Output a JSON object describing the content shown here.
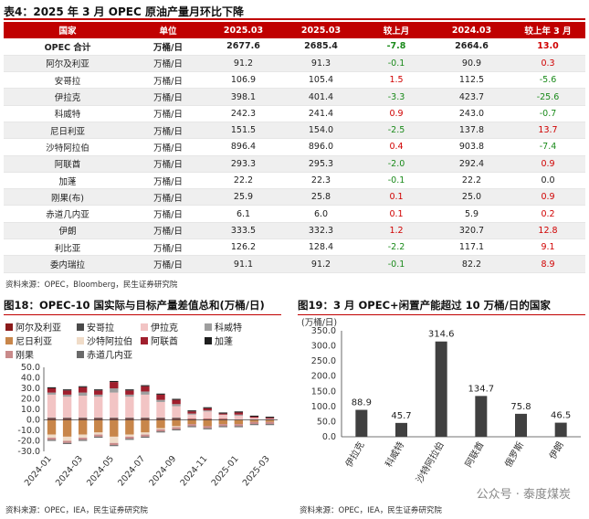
{
  "table": {
    "title": "表4：2025 年 3 月 OPEC 原油产量月环比下降",
    "headers": [
      "国家",
      "单位",
      "2025.03",
      "2025.03",
      "较上月",
      "2024.03",
      "较上年 3 月"
    ],
    "rows": [
      {
        "c": [
          "OPEC 合计",
          "万桶/日",
          "2677.6",
          "2685.4",
          "-7.8",
          "2664.6",
          "13.0"
        ],
        "d1": "neg",
        "d2": "pos",
        "bold": true
      },
      {
        "c": [
          "阿尔及利亚",
          "万桶/日",
          "91.2",
          "91.3",
          "-0.1",
          "90.9",
          "0.3"
        ],
        "d1": "neg",
        "d2": "pos"
      },
      {
        "c": [
          "安哥拉",
          "万桶/日",
          "106.9",
          "105.4",
          "1.5",
          "112.5",
          "-5.6"
        ],
        "d1": "pos",
        "d2": "neg"
      },
      {
        "c": [
          "伊拉克",
          "万桶/日",
          "398.1",
          "401.4",
          "-3.3",
          "423.7",
          "-25.6"
        ],
        "d1": "neg",
        "d2": "neg"
      },
      {
        "c": [
          "科威特",
          "万桶/日",
          "242.3",
          "241.4",
          "0.9",
          "243.0",
          "-0.7"
        ],
        "d1": "pos",
        "d2": "neg"
      },
      {
        "c": [
          "尼日利亚",
          "万桶/日",
          "151.5",
          "154.0",
          "-2.5",
          "137.8",
          "13.7"
        ],
        "d1": "neg",
        "d2": "pos"
      },
      {
        "c": [
          "沙特阿拉伯",
          "万桶/日",
          "896.4",
          "896.0",
          "0.4",
          "903.8",
          "-7.4"
        ],
        "d1": "pos",
        "d2": "neg"
      },
      {
        "c": [
          "阿联酋",
          "万桶/日",
          "293.3",
          "295.3",
          "-2.0",
          "292.4",
          "0.9"
        ],
        "d1": "neg",
        "d2": "pos"
      },
      {
        "c": [
          "加蓬",
          "万桶/日",
          "22.2",
          "22.3",
          "-0.1",
          "22.2",
          "0.0"
        ],
        "d1": "neg",
        "d2": "neu"
      },
      {
        "c": [
          "刚果(布)",
          "万桶/日",
          "25.9",
          "25.8",
          "0.1",
          "25.0",
          "0.9"
        ],
        "d1": "pos",
        "d2": "pos"
      },
      {
        "c": [
          "赤道几内亚",
          "万桶/日",
          "6.1",
          "6.0",
          "0.1",
          "5.9",
          "0.2"
        ],
        "d1": "pos",
        "d2": "pos"
      },
      {
        "c": [
          "伊朗",
          "万桶/日",
          "333.5",
          "332.3",
          "1.2",
          "320.7",
          "12.8"
        ],
        "d1": "pos",
        "d2": "pos"
      },
      {
        "c": [
          "利比亚",
          "万桶/日",
          "126.2",
          "128.4",
          "-2.2",
          "117.1",
          "9.1"
        ],
        "d1": "neg",
        "d2": "pos"
      },
      {
        "c": [
          "委内瑞拉",
          "万桶/日",
          "91.1",
          "91.2",
          "-0.1",
          "82.2",
          "8.9"
        ],
        "d1": "neg",
        "d2": "pos"
      }
    ]
  },
  "table_source": "资料来源：OPEC，Bloomberg，民生证券研究院",
  "fig18": {
    "title": "图18：OPEC-10 国实际与目标产量差值总和(万桶/日)",
    "source": "资料来源：OPEC，IEA，民生证券研究院"
  },
  "fig19": {
    "title": "图19：3 月 OPEC+闲置产能超过 10 万桶/日的国家",
    "source": "资料来源：OPEC，IEA，民生证券研究院"
  },
  "watermark": "公众号 · 泰度煤炭",
  "colors": {
    "accent": "#c00000",
    "neg": "#1a8a1a",
    "pos": "#d00000"
  },
  "chart_data": [
    {
      "type": "bar",
      "stacked": true,
      "ylim": [
        -30,
        50
      ],
      "yticks": [
        "50.0",
        "40.0",
        "30.0",
        "20.0",
        "10.0",
        "0.0",
        "-10.0",
        "-20.0",
        "-30.0"
      ],
      "xticklabels": [
        "2024-01",
        "2024-03",
        "2024-05",
        "2024-07",
        "2024-09",
        "2024-11",
        "2025-01",
        "2025-03"
      ],
      "series": [
        {
          "name": "阿尔及利亚",
          "color": "#8b1a1a",
          "values": [
            1,
            1,
            1,
            1,
            1,
            1,
            1,
            1,
            1,
            1,
            1,
            1,
            0,
            0,
            0
          ]
        },
        {
          "name": "安哥拉",
          "color": "#4a4a4a",
          "values": [
            1,
            1,
            1,
            1,
            1,
            1,
            1,
            1,
            1,
            0,
            0,
            0,
            0,
            0,
            0
          ]
        },
        {
          "name": "伊拉克",
          "color": "#f2c4c4",
          "values": [
            22,
            20,
            21,
            20,
            24,
            20,
            22,
            15,
            11,
            4,
            7,
            4,
            4,
            2,
            1
          ]
        },
        {
          "name": "科威特",
          "color": "#9e9e9e",
          "values": [
            2,
            2,
            3,
            2,
            4,
            2,
            3,
            2,
            2,
            1,
            1,
            0,
            1,
            0,
            0
          ]
        },
        {
          "name": "尼日利亚",
          "color": "#c8864a",
          "values": [
            -14,
            -16,
            -14,
            -12,
            -16,
            -14,
            -12,
            -8,
            -6,
            -4,
            -6,
            -4,
            -4,
            -2,
            -2
          ]
        },
        {
          "name": "沙特阿拉伯",
          "color": "#f0dcc8",
          "values": [
            -3,
            -4,
            -3,
            -2,
            -6,
            -2,
            -2,
            -1,
            -1,
            0,
            0,
            0,
            0,
            0,
            0
          ]
        },
        {
          "name": "阿联酋",
          "color": "#a01f2d",
          "values": [
            4,
            4,
            5,
            4,
            6,
            4,
            5,
            5,
            4,
            2,
            2,
            1,
            2,
            1,
            1
          ]
        },
        {
          "name": "加蓬",
          "color": "#1e1e1e",
          "values": [
            1,
            1,
            1,
            1,
            1,
            1,
            1,
            1,
            1,
            1,
            1,
            1,
            1,
            1,
            1
          ]
        },
        {
          "name": "刚果",
          "color": "#c98a8a",
          "values": [
            -2,
            -2,
            -2,
            -2,
            -2,
            -2,
            -2,
            -2,
            -2,
            -2,
            -2,
            -2,
            -2,
            -2,
            -2
          ]
        },
        {
          "name": "赤道几内亚",
          "color": "#6a6a6a",
          "values": [
            -1,
            -1,
            -1,
            -1,
            -1,
            -1,
            -1,
            -1,
            -1,
            -1,
            -1,
            -1,
            -1,
            -1,
            -1
          ]
        }
      ]
    },
    {
      "type": "bar",
      "categories": [
        "伊拉克",
        "科威特",
        "沙特阿拉伯",
        "阿联酋",
        "俄罗斯",
        "伊朗"
      ],
      "values": [
        88.9,
        45.7,
        314.6,
        134.7,
        75.8,
        46.5
      ],
      "labels": [
        "88.9",
        "45.7",
        "314.6",
        "134.7",
        "75.8",
        "46.5"
      ],
      "ylabel": "(万桶/日)",
      "ylim": [
        0,
        350
      ],
      "yticks": [
        "350.0",
        "300.0",
        "250.0",
        "200.0",
        "150.0",
        "100.0",
        "50.0",
        "0.0"
      ],
      "color": "#404040"
    }
  ]
}
